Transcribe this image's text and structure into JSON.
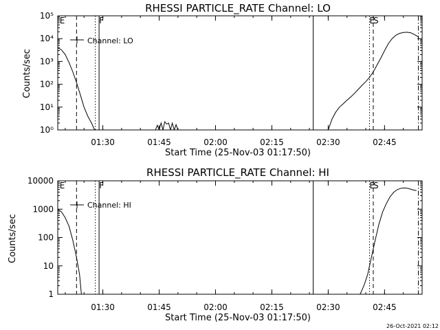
{
  "chart_data": [
    {
      "type": "line",
      "title": "RHESSI PARTICLE_RATE Channel: LO",
      "xlabel": "Start Time (25-Nov-03 01:17:50)",
      "ylabel": "Counts/sec",
      "yscale": "log",
      "ylim": [
        1,
        100000
      ],
      "xlim_minutes": [
        78,
        175
      ],
      "x_ticks": [
        "01:30",
        "01:45",
        "02:00",
        "02:15",
        "02:30",
        "02:45"
      ],
      "y_ticks": [
        "10⁰",
        "10¹",
        "10²",
        "10³",
        "10⁴",
        "10⁵"
      ],
      "legend": "Channel: LO",
      "legend_position": "top-left",
      "markers": [
        {
          "label": "E",
          "minute": 78.5,
          "style": "none"
        },
        {
          "label": "",
          "minute": 83.0,
          "style": "dashed"
        },
        {
          "label": "",
          "minute": 88.0,
          "style": "dotted"
        },
        {
          "label": "F",
          "minute": 89.0,
          "style": "solid"
        },
        {
          "label": "",
          "minute": 146.0,
          "style": "solid"
        },
        {
          "label": "E",
          "minute": 161.0,
          "style": "dotted"
        },
        {
          "label": "S",
          "minute": 162.0,
          "style": "dashed"
        },
        {
          "label": "",
          "minute": 174.0,
          "style": "dashdot"
        }
      ],
      "series": [
        {
          "segments": [
            [
              [
                78,
                4000
              ],
              [
                79,
                3200
              ],
              [
                80,
                2000
              ],
              [
                81,
                900
              ],
              [
                82,
                350
              ],
              [
                83,
                120
              ],
              [
                84,
                35
              ],
              [
                85,
                10
              ],
              [
                86,
                4
              ],
              [
                87,
                2
              ],
              [
                87.8,
                1
              ]
            ],
            [
              [
                104,
                1
              ],
              [
                104.5,
                1.6
              ],
              [
                105,
                1
              ],
              [
                105.5,
                2
              ],
              [
                106,
                1
              ],
              [
                106.5,
                2.3
              ],
              [
                107,
                1.8
              ],
              [
                107.5,
                2
              ],
              [
                108,
                1
              ],
              [
                108.5,
                2
              ],
              [
                109,
                1
              ],
              [
                109.5,
                1.7
              ],
              [
                110,
                1
              ]
            ],
            [
              [
                150,
                1
              ],
              [
                151,
                3
              ],
              [
                152,
                6
              ],
              [
                153,
                10
              ],
              [
                154,
                14
              ],
              [
                155,
                20
              ],
              [
                156,
                28
              ],
              [
                157,
                40
              ],
              [
                158,
                60
              ],
              [
                159,
                90
              ],
              [
                160,
                130
              ],
              [
                161,
                200
              ],
              [
                162,
                350
              ],
              [
                163,
                700
              ],
              [
                164,
                1400
              ],
              [
                165,
                3000
              ],
              [
                166,
                6000
              ],
              [
                167,
                10000
              ],
              [
                168,
                14000
              ],
              [
                169,
                17000
              ],
              [
                170,
                18500
              ],
              [
                171,
                19000
              ],
              [
                172,
                18000
              ],
              [
                173,
                15000
              ],
              [
                174,
                12000
              ]
            ]
          ]
        }
      ]
    },
    {
      "type": "line",
      "title": "RHESSI PARTICLE_RATE Channel: HI",
      "xlabel": "Start Time (25-Nov-03 01:17:50)",
      "ylabel": "Counts/sec",
      "yscale": "log",
      "ylim": [
        1,
        10000
      ],
      "xlim_minutes": [
        78,
        175
      ],
      "x_ticks": [
        "01:30",
        "01:45",
        "02:00",
        "02:15",
        "02:30",
        "02:45"
      ],
      "y_ticks": [
        "1",
        "10",
        "100",
        "1000",
        "10000"
      ],
      "legend": "Channel: HI",
      "legend_position": "top-left",
      "markers": [
        {
          "label": "E",
          "minute": 78.5,
          "style": "none"
        },
        {
          "label": "",
          "minute": 83.0,
          "style": "dashed"
        },
        {
          "label": "",
          "minute": 88.0,
          "style": "dotted"
        },
        {
          "label": "F",
          "minute": 89.0,
          "style": "solid"
        },
        {
          "label": "",
          "minute": 146.0,
          "style": "solid"
        },
        {
          "label": "E",
          "minute": 161.0,
          "style": "dotted"
        },
        {
          "label": "S",
          "minute": 162.0,
          "style": "dashed"
        },
        {
          "label": "",
          "minute": 174.0,
          "style": "dashdot"
        }
      ],
      "series": [
        {
          "segments": [
            [
              [
                78,
                1000
              ],
              [
                79,
                800
              ],
              [
                80,
                500
              ],
              [
                81,
                250
              ],
              [
                82,
                80
              ],
              [
                83,
                20
              ],
              [
                83.8,
                5
              ],
              [
                84.3,
                1
              ]
            ],
            [
              [
                158.5,
                1
              ],
              [
                159.5,
                2
              ],
              [
                160.5,
                5
              ],
              [
                161.5,
                20
              ],
              [
                162.5,
                80
              ],
              [
                163.5,
                300
              ],
              [
                164.5,
                800
              ],
              [
                165.5,
                1600
              ],
              [
                166.5,
                2800
              ],
              [
                167.5,
                4000
              ],
              [
                168.5,
                5000
              ],
              [
                169.5,
                5500
              ],
              [
                170.5,
                5600
              ],
              [
                171.5,
                5300
              ],
              [
                172.5,
                4800
              ],
              [
                173.5,
                4500
              ]
            ]
          ]
        }
      ]
    }
  ],
  "timestamp": "26-Oct-2021 02:12"
}
